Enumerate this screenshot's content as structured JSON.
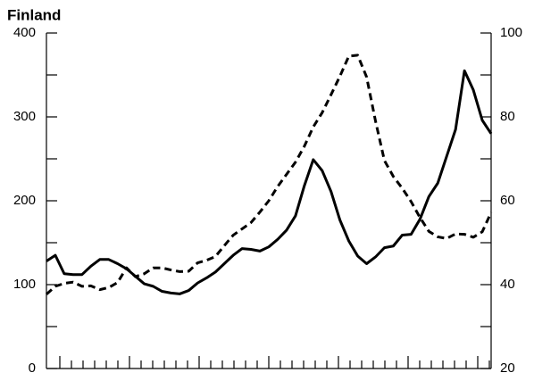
{
  "chart_data": {
    "type": "line",
    "title": "Finland",
    "x": [
      0,
      1,
      2,
      3,
      4,
      5,
      6,
      7,
      8,
      9,
      10,
      11,
      12,
      13,
      14,
      15,
      16,
      17,
      18,
      19,
      20,
      21,
      22,
      23,
      24,
      25,
      26,
      27,
      28,
      29,
      30,
      31,
      32,
      33,
      34,
      35,
      36,
      37,
      38,
      39,
      40,
      41,
      42,
      43,
      44,
      45,
      46,
      47,
      48,
      49,
      50
    ],
    "xlim": [
      0,
      50
    ],
    "ylim": [
      0,
      400
    ],
    "yticks": [
      0,
      100,
      200,
      300,
      400
    ],
    "y2lim": [
      20,
      100
    ],
    "y2ticks": [
      20,
      40,
      60,
      80,
      100
    ],
    "series": [
      {
        "style": "solid",
        "color": "#000000",
        "values": [
          128,
          135,
          113,
          112,
          112,
          122,
          130,
          130,
          125,
          119,
          110,
          101,
          98,
          92,
          90,
          89,
          93,
          102,
          108,
          115,
          125,
          135,
          143,
          142,
          140,
          145,
          154,
          165,
          182,
          218,
          249,
          236,
          211,
          177,
          152,
          134,
          125,
          133,
          144,
          146,
          159,
          160,
          178,
          205,
          221,
          253,
          285,
          355,
          332,
          296,
          280
        ]
      },
      {
        "style": "dashed",
        "color": "#000000",
        "axis": "y2",
        "values": [
          37.7,
          39.6,
          40.3,
          40.6,
          39.6,
          39.7,
          38.8,
          39.3,
          40.5,
          44,
          41.9,
          42.6,
          44,
          44,
          43.5,
          43.1,
          43.2,
          45.2,
          45.8,
          46.7,
          49.3,
          51.8,
          53.3,
          54.8,
          57.3,
          60,
          63.4,
          66.3,
          69.2,
          73,
          77.6,
          81,
          85.3,
          89.7,
          94.5,
          94.7,
          89.5,
          79,
          69.6,
          65.8,
          63,
          59.8,
          56,
          52.7,
          51.4,
          51,
          52.1,
          52,
          51.3,
          52.6,
          57.2
        ]
      }
    ]
  }
}
